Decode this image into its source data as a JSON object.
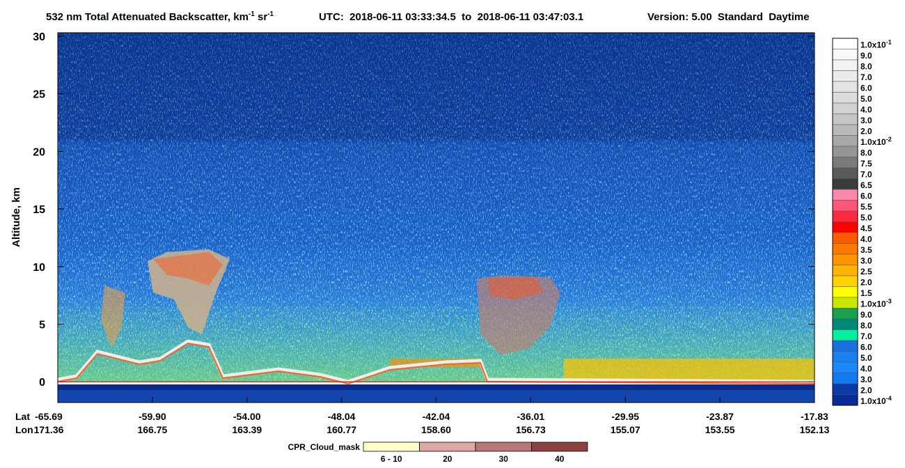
{
  "chart_data": {
    "type": "curtain",
    "title": {
      "text1": "532 nm Total Attenuated Backscatter, km",
      "sup1": "-1",
      "text2": " sr",
      "sup2": "-1",
      "utc": "UTC:  2018-06-11 03:33:34.5  to  2018-06-11 03:47:03.1",
      "version": "Version: 5.00  Standard  Daytime"
    },
    "ylabel": "Altitude, km",
    "ylim": [
      -1.8,
      30.3
    ],
    "yticks": [
      0,
      5,
      10,
      15,
      20,
      25,
      30
    ],
    "lat_label": "Lat",
    "lon_label": "Lon",
    "categories": [
      "-65.69",
      "-59.90",
      "-54.00",
      "-48.04",
      "-42.04",
      "-36.01",
      "-29.95",
      "-23.87",
      "-17.83"
    ],
    "lon": [
      "171.36",
      "166.75",
      "163.39",
      "160.77",
      "158.60",
      "156.73",
      "155.07",
      "153.55",
      "152.13"
    ],
    "colorbar": {
      "labels": [
        {
          "label": "1.0x10",
          "exp": "-1"
        },
        "9.0",
        "8.0",
        "7.0",
        "6.0",
        "5.0",
        "4.0",
        "3.0",
        "2.0",
        {
          "label": "1.0x10",
          "exp": "-2"
        },
        "8.0",
        "7.5",
        "7.0",
        "6.5",
        "6.0",
        "5.5",
        "5.0",
        "4.5",
        "4.0",
        "3.5",
        "3.0",
        "2.5",
        "2.0",
        "1.5",
        {
          "label": "1.0x10",
          "exp": "-3"
        },
        "9.0",
        "8.0",
        "7.0",
        "6.0",
        "5.0",
        "4.0",
        "3.0",
        "2.0",
        {
          "label": "1.0x10",
          "exp": "-4"
        }
      ],
      "colors": [
        "#ffffff",
        "#f9f9f9",
        "#f2f2f2",
        "#ebebeb",
        "#e4e4e4",
        "#dcdcdc",
        "#d2d2d2",
        "#c6c6c6",
        "#bababa",
        "#a8a8a8",
        "#959595",
        "#7a7a7a",
        "#5a5a5a",
        "#3c3c3c",
        "#ff88aa",
        "#ff5577",
        "#ff2a40",
        "#ff0000",
        "#ff5a00",
        "#ff7800",
        "#ff9600",
        "#ffb400",
        "#ffd200",
        "#ffff00",
        "#c8e800",
        "#18a050",
        "#008878",
        "#00f0a0",
        "#1a70e0",
        "#1a80f0",
        "#1a88f8",
        "#1478f0",
        "#0a3aa8",
        "#082c98"
      ]
    },
    "cpr": {
      "title": "CPR_Cloud_mask",
      "labels": [
        "6 - 10",
        "20",
        "30",
        "40"
      ],
      "colors": [
        "#ffffc8",
        "#dca8a8",
        "#b87878",
        "#8c4040"
      ]
    }
  }
}
